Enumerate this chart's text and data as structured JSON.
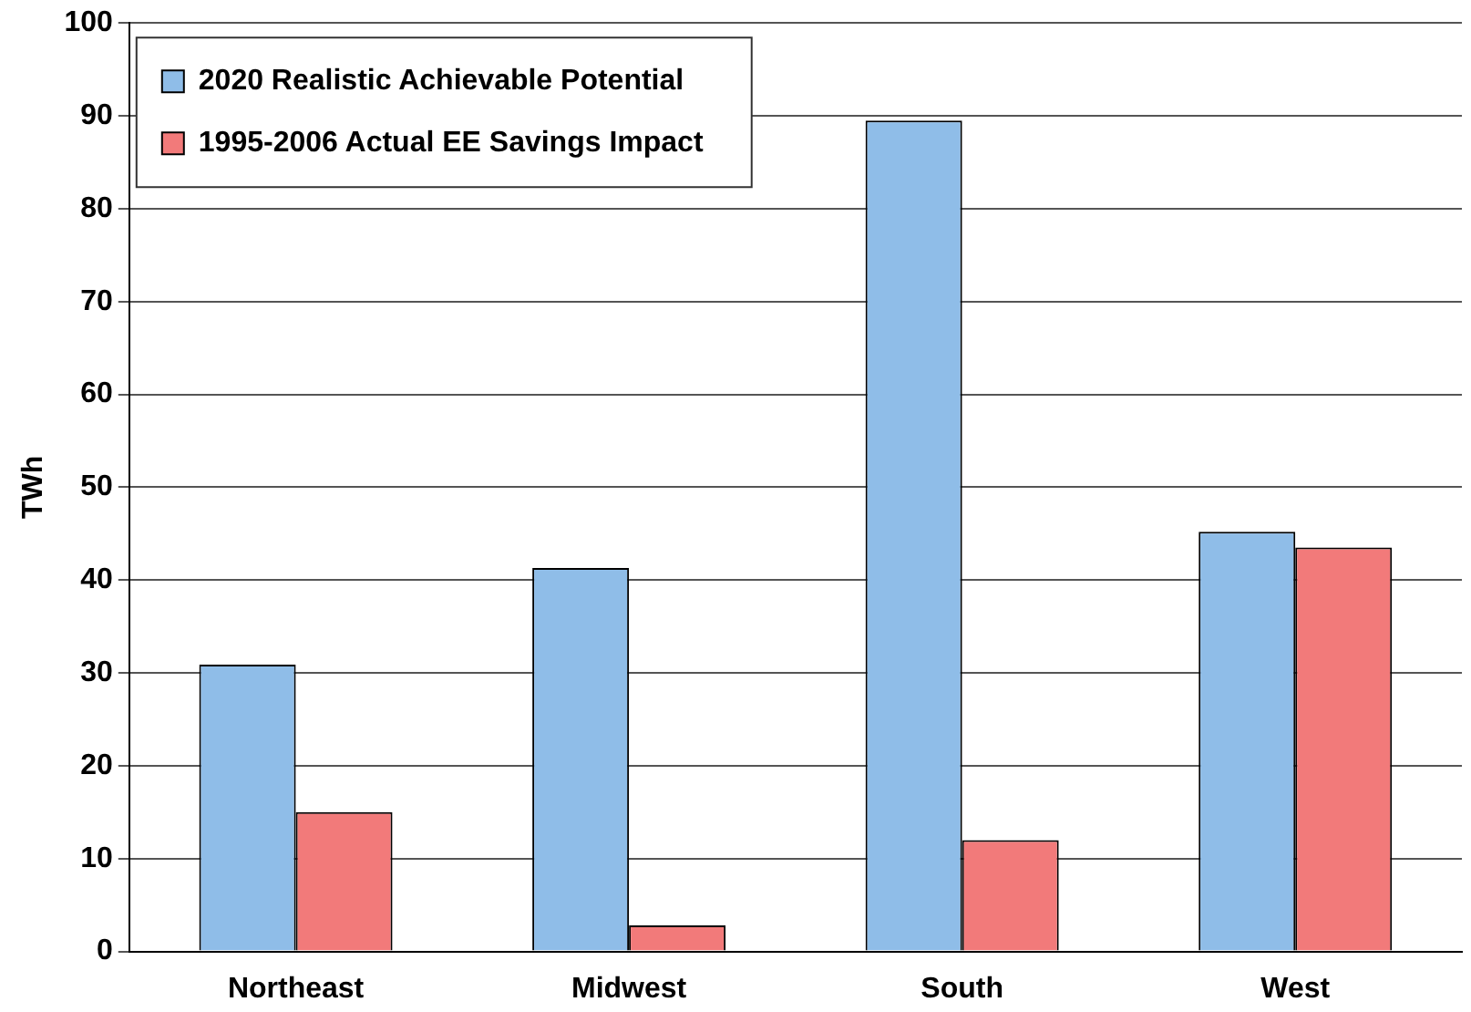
{
  "chart_data": {
    "type": "bar",
    "ylabel": "TWh",
    "categories": [
      "Northeast",
      "Midwest",
      "South",
      "West"
    ],
    "series": [
      {
        "name": "2020 Realistic Achievable Potential",
        "color": "#8fbde8",
        "values": [
          30.9,
          41.3,
          89.5,
          45.2
        ]
      },
      {
        "name": "1995-2006 Actual EE Savings Impact",
        "color": "#f27a7a",
        "values": [
          15,
          2.8,
          12,
          43.5
        ]
      }
    ],
    "ylim": [
      0,
      100
    ],
    "yticks": [
      0,
      10,
      20,
      30,
      40,
      50,
      60,
      70,
      80,
      90,
      100
    ],
    "grid": "y",
    "legend": "top left"
  }
}
